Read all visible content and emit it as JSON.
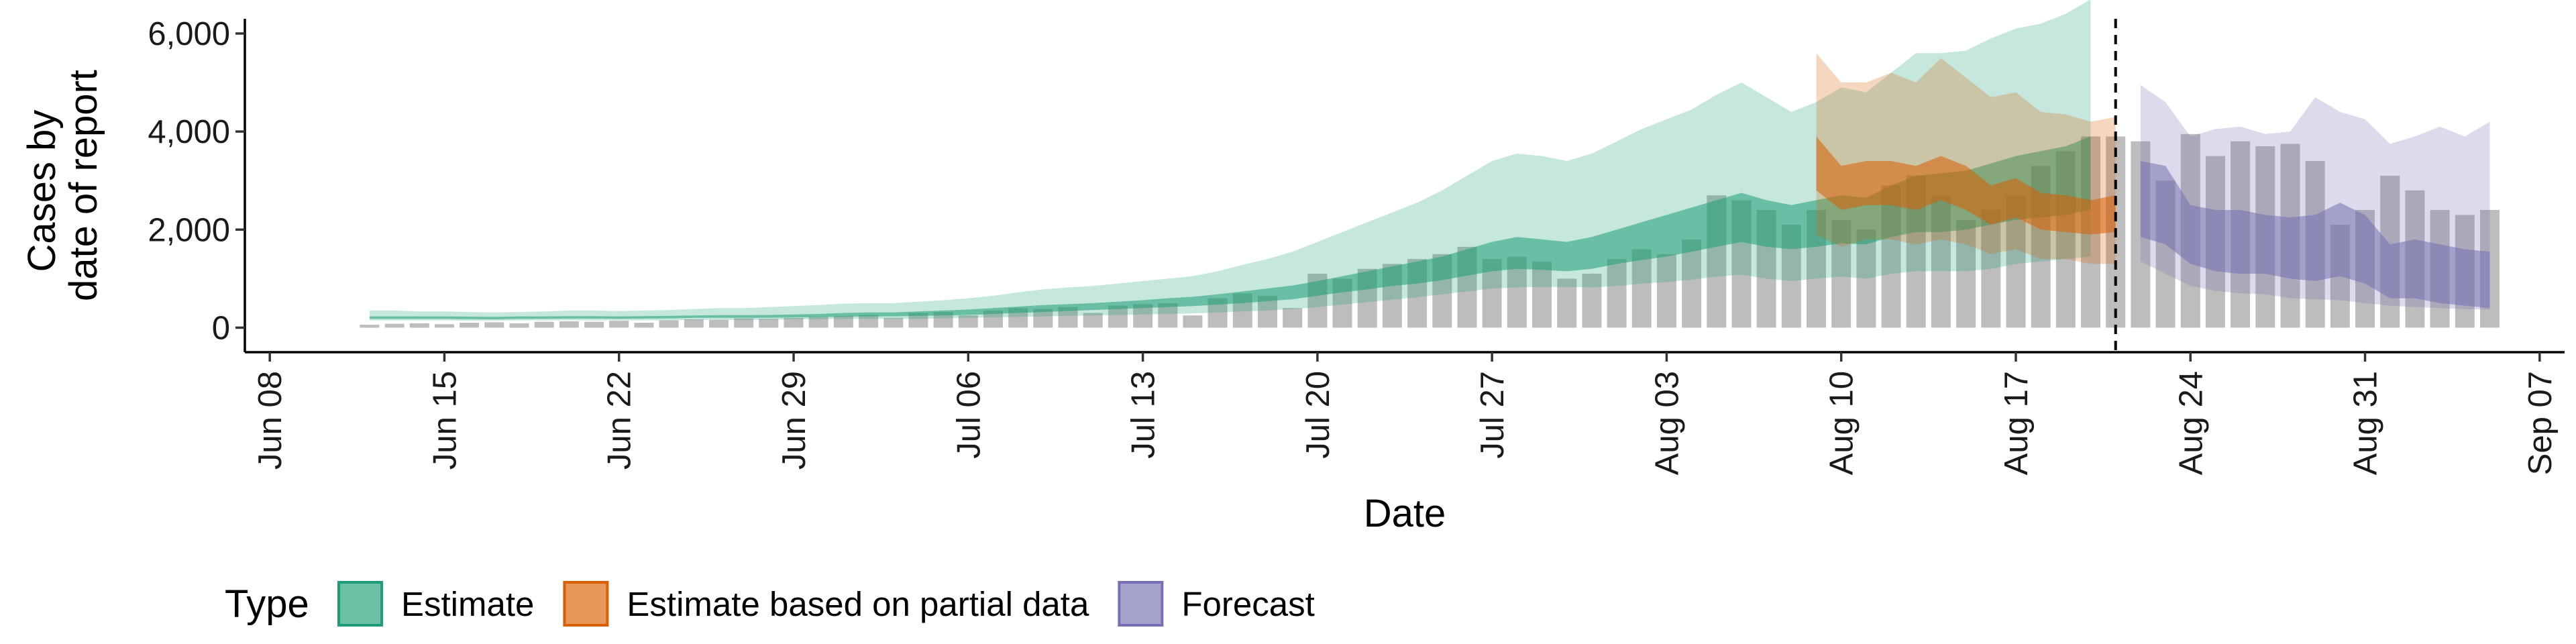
{
  "chart_data": {
    "type": "area",
    "xlabel": "Date",
    "ylabel": [
      "Cases by",
      "date of report"
    ],
    "x_range": [
      "2020-06-07",
      "2020-09-08"
    ],
    "ylim": [
      -500,
      6300
    ],
    "yticks": [
      0,
      2000,
      4000,
      6000
    ],
    "ytick_labels": [
      "0",
      "2,000",
      "4,000",
      "6,000"
    ],
    "xticks": [
      "2020-06-08",
      "2020-06-15",
      "2020-06-22",
      "2020-06-29",
      "2020-07-06",
      "2020-07-13",
      "2020-07-20",
      "2020-07-27",
      "2020-08-03",
      "2020-08-10",
      "2020-08-17",
      "2020-08-24",
      "2020-08-31",
      "2020-09-07"
    ],
    "xtick_labels": [
      "Jun 08",
      "Jun 15",
      "Jun 22",
      "Jun 29",
      "Jul 06",
      "Jul 13",
      "Jul 20",
      "Jul 27",
      "Aug 03",
      "Aug 10",
      "Aug 17",
      "Aug 24",
      "Aug 31",
      "Sep 07"
    ],
    "vline_date": "2020-08-21",
    "bars": {
      "start_date": "2020-06-12",
      "color": "#bdbdbd",
      "values": [
        60,
        80,
        90,
        70,
        100,
        110,
        90,
        120,
        130,
        120,
        140,
        100,
        150,
        170,
        160,
        190,
        180,
        200,
        220,
        240,
        260,
        200,
        300,
        320,
        250,
        350,
        400,
        380,
        420,
        300,
        450,
        480,
        500,
        250,
        600,
        700,
        650,
        400,
        1100,
        1000,
        1200,
        1300,
        1400,
        1500,
        1650,
        1400,
        1450,
        1350,
        1000,
        1100,
        1400,
        1600,
        1500,
        1800,
        2700,
        2600,
        2400,
        2100,
        2400,
        2200,
        2000,
        2900,
        3100,
        2700,
        2200,
        2400,
        2700,
        3300,
        3600,
        3900,
        3900,
        3800,
        3000,
        3950,
        3500,
        3800,
        3700,
        3750,
        3400,
        2100,
        2400,
        3100,
        2800,
        2400,
        2300,
        2400
      ]
    },
    "series": [
      {
        "name": "Estimate",
        "color": "#1b9e77",
        "start_date": "2020-06-12",
        "outer_low": [
          150,
          150,
          150,
          150,
          140,
          140,
          150,
          150,
          150,
          150,
          150,
          150,
          150,
          160,
          160,
          160,
          160,
          170,
          170,
          180,
          180,
          180,
          180,
          190,
          200,
          210,
          220,
          230,
          240,
          250,
          260,
          270,
          280,
          290,
          310,
          330,
          350,
          380,
          420,
          470,
          520,
          570,
          620,
          680,
          740,
          800,
          820,
          830,
          830,
          820,
          850,
          900,
          930,
          980,
          1040,
          1080,
          1000,
          950,
          1000,
          1040,
          1000,
          1100,
          1150,
          1150,
          1150,
          1200,
          1300,
          1350,
          1400,
          1450
        ],
        "inner_low": [
          180,
          180,
          180,
          180,
          175,
          170,
          180,
          180,
          185,
          185,
          180,
          185,
          190,
          200,
          200,
          200,
          200,
          210,
          215,
          225,
          230,
          230,
          240,
          250,
          260,
          280,
          300,
          320,
          340,
          360,
          380,
          400,
          420,
          440,
          470,
          500,
          540,
          580,
          650,
          720,
          780,
          850,
          900,
          970,
          1060,
          1150,
          1200,
          1180,
          1150,
          1200,
          1300,
          1380,
          1450,
          1550,
          1650,
          1750,
          1650,
          1600,
          1650,
          1720,
          1700,
          1850,
          1950,
          1950,
          2000,
          2100,
          2200,
          2250,
          2300,
          2400
        ],
        "inner_high": [
          230,
          230,
          230,
          230,
          225,
          220,
          230,
          230,
          235,
          235,
          230,
          235,
          240,
          250,
          255,
          255,
          260,
          270,
          280,
          300,
          310,
          310,
          330,
          350,
          370,
          400,
          430,
          460,
          480,
          500,
          530,
          560,
          600,
          630,
          680,
          740,
          800,
          860,
          950,
          1050,
          1150,
          1250,
          1350,
          1450,
          1600,
          1750,
          1850,
          1800,
          1750,
          1850,
          2000,
          2150,
          2300,
          2450,
          2600,
          2750,
          2600,
          2500,
          2600,
          2700,
          2650,
          2900,
          3100,
          3150,
          3200,
          3350,
          3500,
          3600,
          3700,
          3900
        ],
        "outer_high": [
          350,
          350,
          330,
          330,
          320,
          310,
          320,
          330,
          350,
          350,
          340,
          350,
          360,
          380,
          400,
          400,
          420,
          440,
          460,
          490,
          500,
          500,
          530,
          560,
          600,
          650,
          720,
          780,
          820,
          850,
          900,
          950,
          1000,
          1050,
          1150,
          1280,
          1400,
          1550,
          1750,
          1950,
          2150,
          2350,
          2550,
          2800,
          3100,
          3400,
          3550,
          3500,
          3400,
          3550,
          3800,
          4050,
          4250,
          4450,
          4750,
          5000,
          4700,
          4400,
          4600,
          4900,
          4800,
          5200,
          5600,
          5600,
          5650,
          5900,
          6100,
          6200,
          6400,
          6700
        ]
      },
      {
        "name": "Estimate based on partial data",
        "color": "#d95f02",
        "start_date": "2020-08-09",
        "outer_low": [
          1900,
          1650,
          1800,
          1800,
          1700,
          1800,
          1700,
          1500,
          1600,
          1400,
          1400,
          1300,
          1300
        ],
        "inner_low": [
          2800,
          2400,
          2500,
          2500,
          2400,
          2600,
          2400,
          2100,
          2250,
          2000,
          1950,
          1900,
          1950
        ],
        "inner_high": [
          3900,
          3300,
          3400,
          3400,
          3300,
          3500,
          3300,
          2900,
          3050,
          2750,
          2700,
          2600,
          2700
        ],
        "outer_high": [
          5600,
          5000,
          5000,
          5200,
          5000,
          5500,
          5100,
          4700,
          4800,
          4400,
          4350,
          4200,
          4300
        ]
      },
      {
        "name": "Forecast",
        "color": "#7570b3",
        "start_date": "2020-08-22",
        "outer_low": [
          1350,
          1100,
          850,
          750,
          700,
          680,
          600,
          580,
          560,
          500,
          450,
          420,
          400,
          380,
          370
        ],
        "inner_low": [
          1850,
          1700,
          1300,
          1150,
          1100,
          1100,
          1000,
          950,
          1050,
          900,
          600,
          600,
          500,
          450,
          400
        ],
        "inner_high": [
          3400,
          3300,
          2500,
          2400,
          2400,
          2300,
          2250,
          2300,
          2550,
          2300,
          1700,
          1800,
          1700,
          1600,
          1550
        ],
        "outer_high": [
          4950,
          4600,
          3900,
          4050,
          4100,
          3950,
          4000,
          4700,
          4400,
          4250,
          3750,
          3900,
          4100,
          3900,
          4200
        ]
      }
    ],
    "legend": {
      "title": "Type",
      "position": "bottom",
      "items": [
        "Estimate",
        "Estimate based on partial data",
        "Forecast"
      ]
    }
  }
}
